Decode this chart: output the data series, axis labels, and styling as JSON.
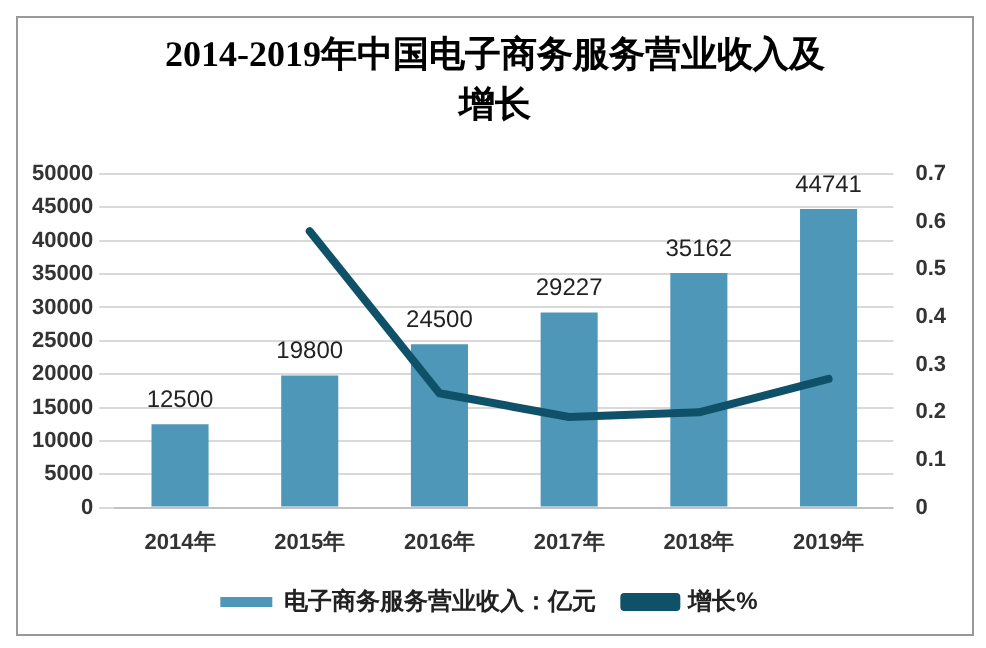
{
  "chart_data": {
    "type": "bar",
    "title": "2014-2019年中国电子商务服务营业收入及增长",
    "categories": [
      "2014年",
      "2015年",
      "2016年",
      "2017年",
      "2018年",
      "2019年"
    ],
    "series": [
      {
        "name": "电子商务服务营业收入：亿元",
        "color": "#4f97b8",
        "values": [
          12500,
          19800,
          24500,
          29227,
          35162,
          44741
        ],
        "value_labels": [
          "12500",
          "19800",
          "24500",
          "29227",
          "35162",
          "44741"
        ]
      },
      {
        "name": "增长%",
        "type": "line",
        "axis": "y2",
        "color": "#0f5168",
        "values": [
          null,
          0.58,
          0.24,
          0.19,
          0.2,
          0.27
        ]
      }
    ],
    "ylim": [
      0,
      50000
    ],
    "yticks": [
      0,
      5000,
      10000,
      15000,
      20000,
      25000,
      30000,
      35000,
      40000,
      45000,
      50000
    ],
    "y2lim": [
      0,
      0.7
    ],
    "y2ticks": [
      0,
      0.1,
      0.2,
      0.3,
      0.4,
      0.5,
      0.6,
      0.7
    ],
    "grid": "y",
    "legend": "bottom",
    "marker": "none"
  }
}
